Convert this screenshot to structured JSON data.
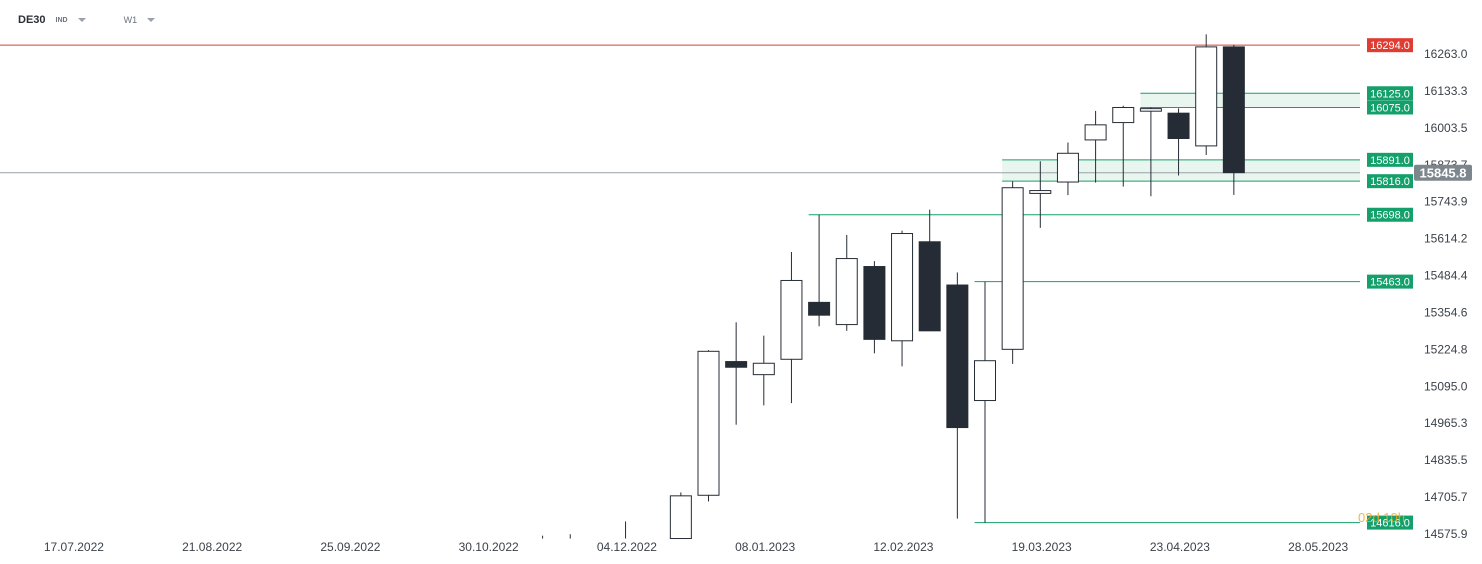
{
  "header": {
    "symbol": "DE30",
    "instrument_type": "IND",
    "timeframe": "W1"
  },
  "countdown": "02d 10h",
  "colors": {
    "bull_body": "#ffffff",
    "bear_body": "#262c35",
    "candle_outline": "#262c35",
    "resistance_line": "#e03c31",
    "support_line": "#14a06a",
    "zone_fill": "#e3f4ec",
    "current_price_label": "#7d858d",
    "grid_label": "#3c424a"
  },
  "chart_data": {
    "type": "candlestick",
    "symbol": "DE30",
    "timeframe": "W1",
    "y_ticks": [
      "16263.0",
      "16133.3",
      "16003.5",
      "15873.7",
      "15743.9",
      "15614.2",
      "15484.4",
      "15354.6",
      "15224.8",
      "15095.0",
      "14965.3",
      "14835.5",
      "14705.7",
      "14575.9"
    ],
    "ylim": [
      14560,
      16345
    ],
    "x_ticks": [
      "17.07.2022",
      "21.08.2022",
      "25.09.2022",
      "30.10.2022",
      "04.12.2022",
      "08.01.2023",
      "12.02.2023",
      "19.03.2023",
      "23.04.2023",
      "28.05.2023"
    ],
    "x_tick_index": [
      -24,
      -19,
      -14,
      -9,
      -4,
      1,
      6,
      11,
      16,
      21
    ],
    "current_price": "15845.8",
    "candles": [
      {
        "i": -6,
        "o": 14560,
        "h": 14570,
        "l": 14560,
        "c": 14560,
        "partial": true
      },
      {
        "i": -5,
        "o": 14560,
        "h": 14575,
        "l": 14560,
        "c": 14560,
        "partial": true
      },
      {
        "i": -3,
        "o": 14560,
        "h": 14620,
        "l": 14560,
        "c": 14560,
        "partial": true
      },
      {
        "i": -1,
        "o": 14560,
        "h": 14722,
        "l": 14560,
        "c": 14710
      },
      {
        "i": 0,
        "o": 14712,
        "h": 15222,
        "l": 14690,
        "c": 15218
      },
      {
        "i": 1,
        "o": 15182,
        "h": 15320,
        "l": 14960,
        "c": 15162
      },
      {
        "i": 2,
        "o": 15136,
        "h": 15273,
        "l": 15028,
        "c": 15176
      },
      {
        "i": 3,
        "o": 15190,
        "h": 15567,
        "l": 15036,
        "c": 15467
      },
      {
        "i": 4,
        "o": 15390,
        "h": 15698,
        "l": 15306,
        "c": 15345
      },
      {
        "i": 5,
        "o": 15312,
        "h": 15627,
        "l": 15290,
        "c": 15544
      },
      {
        "i": 6,
        "o": 15516,
        "h": 15535,
        "l": 15211,
        "c": 15260
      },
      {
        "i": 7,
        "o": 15255,
        "h": 15642,
        "l": 15165,
        "c": 15632
      },
      {
        "i": 8,
        "o": 15603,
        "h": 15716,
        "l": 15299,
        "c": 15290
      },
      {
        "i": 9,
        "o": 15451,
        "h": 15495,
        "l": 14630,
        "c": 14950
      },
      {
        "i": 10,
        "o": 15045,
        "h": 15463,
        "l": 14616,
        "c": 15185
      },
      {
        "i": 11,
        "o": 15225,
        "h": 15815,
        "l": 15174,
        "c": 15793
      },
      {
        "i": 12,
        "o": 15773,
        "h": 15886,
        "l": 15652,
        "c": 15783
      },
      {
        "i": 13,
        "o": 15813,
        "h": 15952,
        "l": 15767,
        "c": 15914
      },
      {
        "i": 14,
        "o": 15961,
        "h": 16063,
        "l": 15811,
        "c": 16014
      },
      {
        "i": 15,
        "o": 16022,
        "h": 16081,
        "l": 15797,
        "c": 16075
      },
      {
        "i": 16,
        "o": 16062,
        "h": 16075,
        "l": 15763,
        "c": 16071
      },
      {
        "i": 17,
        "o": 16055,
        "h": 16072,
        "l": 15836,
        "c": 15966
      },
      {
        "i": 18,
        "o": 15940,
        "h": 16332,
        "l": 15908,
        "c": 16288
      },
      {
        "i": 19,
        "o": 16288,
        "h": 16295,
        "l": 15768,
        "c": 15846
      }
    ],
    "levels": [
      {
        "value": 16294.0,
        "label": "16294.0",
        "color": "#e03c31",
        "from_i": -30
      },
      {
        "value": 16125.0,
        "label": "16125.0",
        "color": "#14a06a",
        "from_i": 16
      },
      {
        "value": 16075.0,
        "label": "16075.0",
        "color": "#14a06a",
        "from_i": 16
      },
      {
        "value": 15891.0,
        "label": "15891.0",
        "color": "#14a06a",
        "from_i": 11
      },
      {
        "value": 15816.0,
        "label": "15816.0",
        "color": "#14a06a",
        "from_i": 11
      },
      {
        "value": 15698.0,
        "label": "15698.0",
        "color": "#14a06a",
        "from_i": 4
      },
      {
        "value": 15463.0,
        "label": "15463.0",
        "color": "#14a06a",
        "from_i": 10
      },
      {
        "value": 14616.0,
        "label": "14616.0",
        "color": "#14a06a",
        "from_i": 10
      }
    ],
    "zones": [
      {
        "top": 16125.0,
        "bottom": 16075.0,
        "from_i": 16
      },
      {
        "top": 15891.0,
        "bottom": 15816.0,
        "from_i": 11
      }
    ],
    "grid": false
  }
}
